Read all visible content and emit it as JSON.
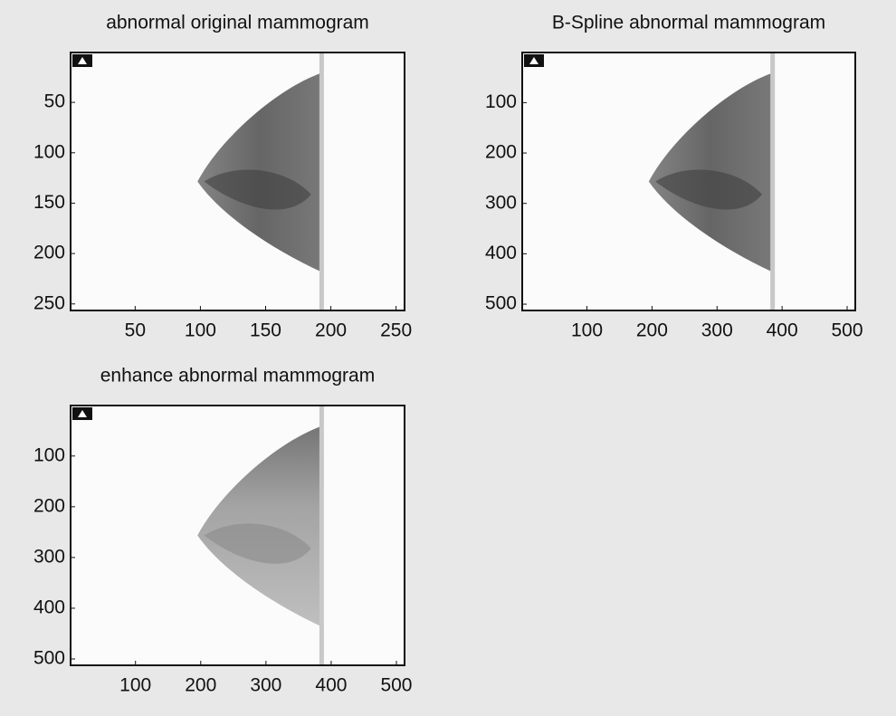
{
  "chart_data": [
    {
      "type": "image",
      "title": "abnormal original mammogram",
      "xlim": [
        0.5,
        256.5
      ],
      "ylim": [
        0.5,
        256.5
      ],
      "xticks": [
        50,
        100,
        150,
        200,
        250
      ],
      "yticks": [
        50,
        100,
        150,
        200,
        250
      ]
    },
    {
      "type": "image",
      "title": "B-Spline abnormal mammogram",
      "xlim": [
        0.5,
        512.5
      ],
      "ylim": [
        0.5,
        512.5
      ],
      "xticks": [
        100,
        200,
        300,
        400,
        500
      ],
      "yticks": [
        100,
        200,
        300,
        400,
        500
      ]
    },
    {
      "type": "image",
      "title": "enhance abnormal mammogram",
      "xlim": [
        0.5,
        512.5
      ],
      "ylim": [
        0.5,
        512.5
      ],
      "xticks": [
        100,
        200,
        300,
        400,
        500
      ],
      "yticks": [
        100,
        200,
        300,
        400,
        500
      ]
    }
  ]
}
